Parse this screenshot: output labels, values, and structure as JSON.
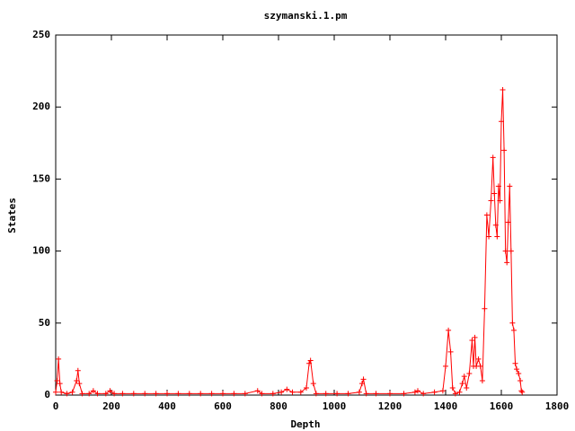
{
  "chart_data": {
    "type": "line",
    "title": "szymanski.1.pm",
    "x_label": "Depth",
    "y_label": "States",
    "xlim": [
      0,
      1800
    ],
    "ylim": [
      0,
      250
    ],
    "xticks": [
      0,
      200,
      400,
      600,
      800,
      1000,
      1200,
      1400,
      1600,
      1800
    ],
    "yticks": [
      0,
      50,
      100,
      150,
      200,
      250
    ],
    "grid": false,
    "marker": "+",
    "x": [
      0,
      5,
      10,
      15,
      20,
      40,
      60,
      75,
      80,
      85,
      95,
      120,
      135,
      150,
      180,
      195,
      210,
      240,
      280,
      320,
      360,
      400,
      440,
      480,
      520,
      560,
      600,
      640,
      680,
      725,
      740,
      780,
      810,
      830,
      850,
      880,
      900,
      910,
      915,
      925,
      935,
      970,
      1010,
      1050,
      1090,
      1100,
      1105,
      1115,
      1150,
      1200,
      1250,
      1290,
      1300,
      1320,
      1360,
      1390,
      1400,
      1410,
      1418,
      1425,
      1435,
      1450,
      1460,
      1467,
      1475,
      1485,
      1495,
      1500,
      1505,
      1510,
      1518,
      1525,
      1532,
      1540,
      1548,
      1555,
      1563,
      1570,
      1575,
      1580,
      1585,
      1590,
      1595,
      1600,
      1605,
      1610,
      1615,
      1620,
      1625,
      1630,
      1635,
      1640,
      1645,
      1650,
      1655,
      1662,
      1668,
      1672,
      1675
    ],
    "series": [
      {
        "name": null,
        "color": "#ff0000",
        "values": [
          2,
          10,
          25,
          8,
          2,
          1,
          2,
          10,
          17,
          8,
          1,
          1,
          3,
          1,
          1,
          3,
          1,
          1,
          1,
          1,
          1,
          1,
          1,
          1,
          1,
          1,
          1,
          1,
          1,
          3,
          1,
          1,
          2,
          4,
          2,
          2,
          5,
          22,
          24,
          8,
          1,
          1,
          1,
          1,
          2,
          8,
          11,
          1,
          1,
          1,
          1,
          2,
          3,
          1,
          2,
          3,
          20,
          45,
          30,
          5,
          1,
          2,
          8,
          13,
          5,
          15,
          38,
          20,
          40,
          20,
          25,
          20,
          10,
          60,
          125,
          110,
          135,
          165,
          140,
          118,
          110,
          145,
          135,
          190,
          212,
          170,
          100,
          92,
          120,
          145,
          100,
          50,
          45,
          22,
          18,
          15,
          10,
          3,
          2
        ]
      }
    ]
  }
}
